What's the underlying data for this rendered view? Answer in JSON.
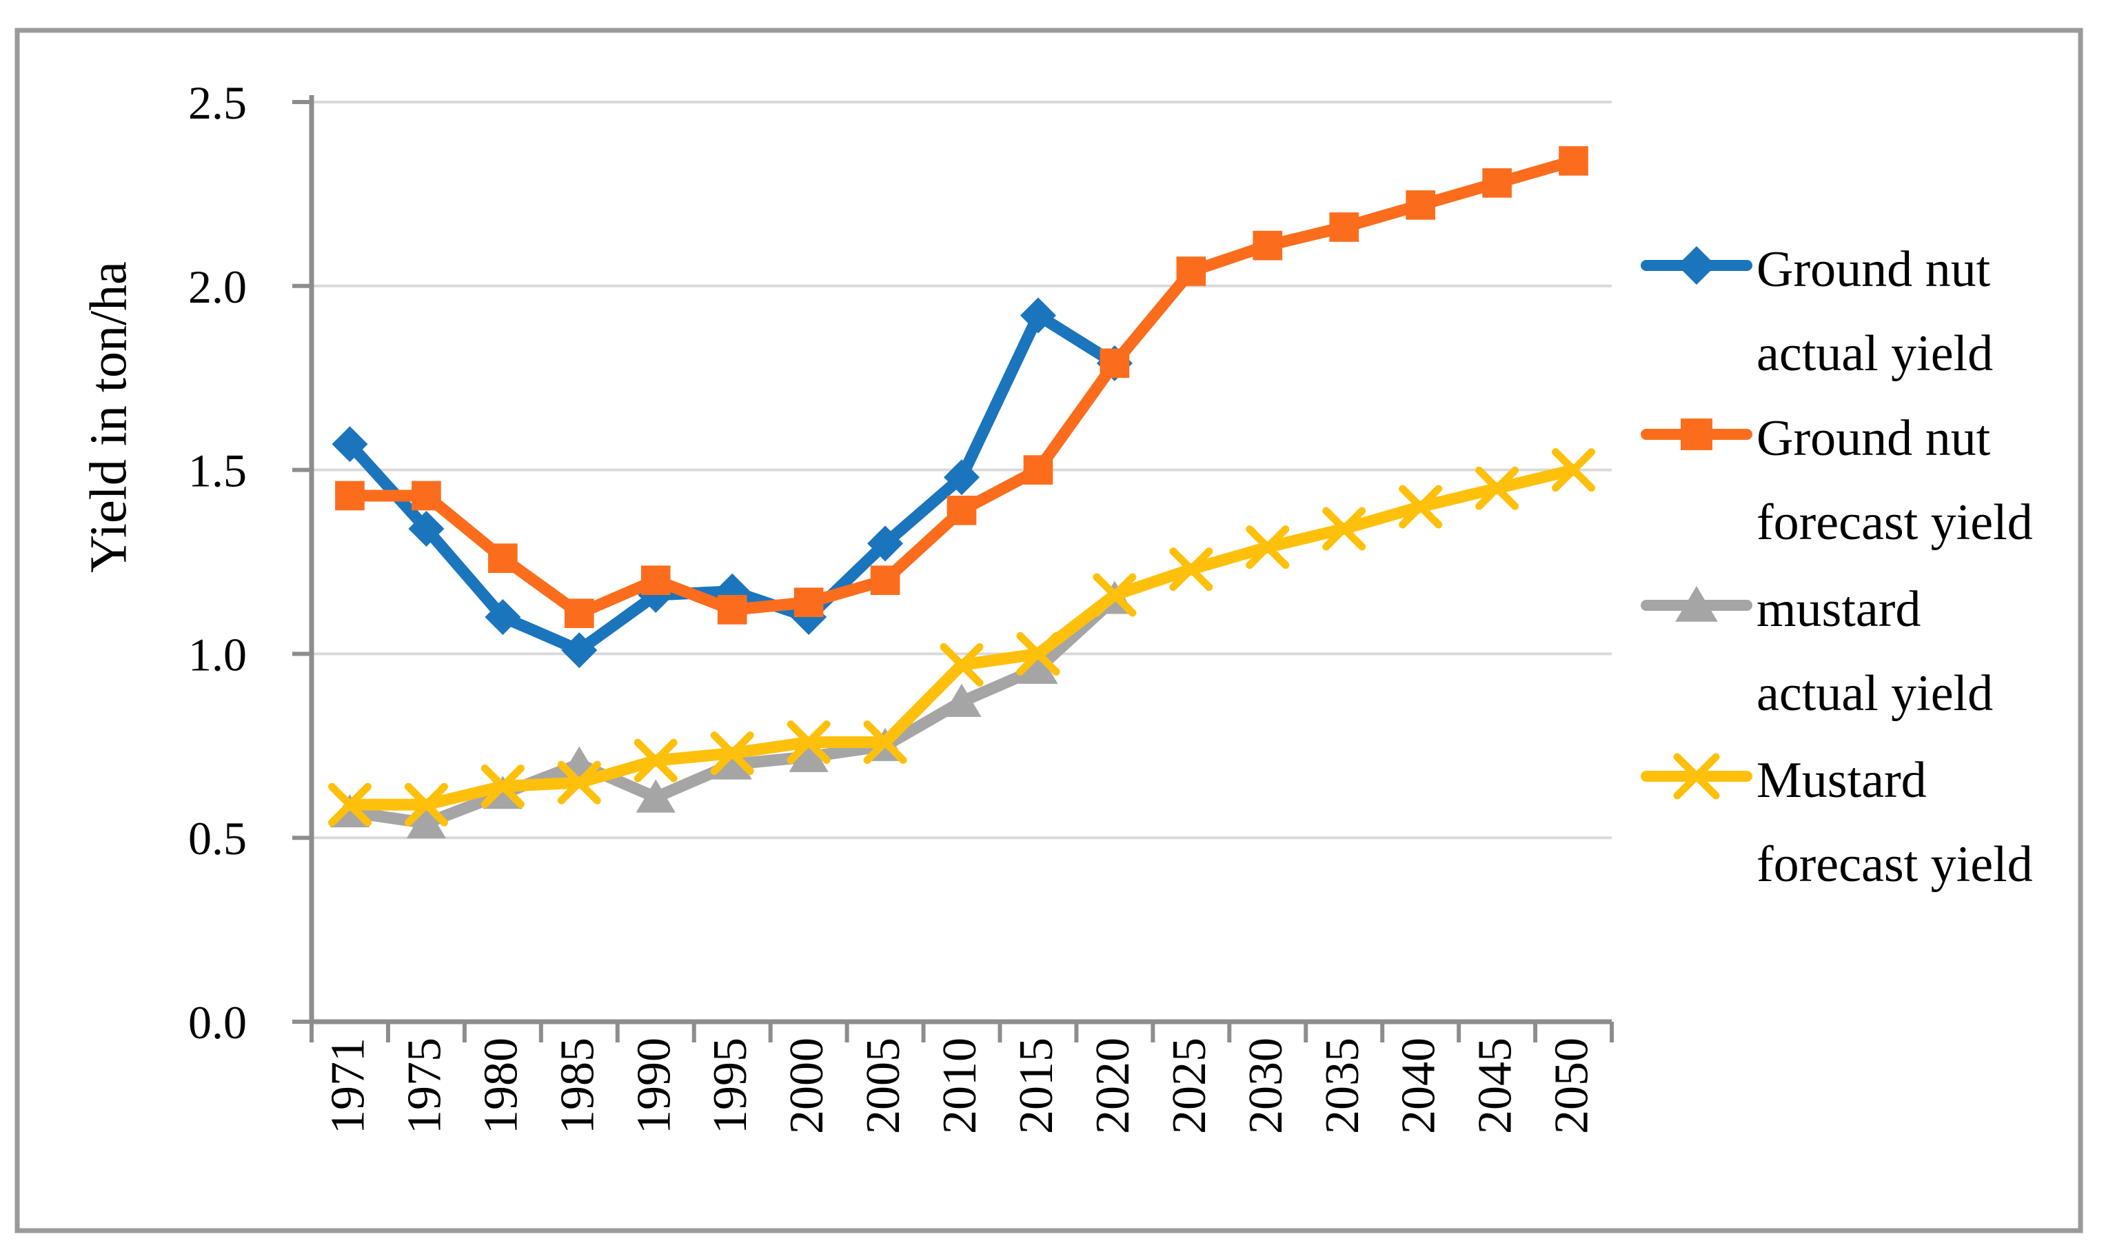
{
  "figure": {
    "frame_color": "#9A9A9A",
    "background": "#ffffff",
    "axis_color": "#8D8D8D",
    "gridline_color": "#D9D9D9",
    "text_color": "#000000"
  },
  "chart_data": {
    "type": "line",
    "title": "",
    "xlabel": "",
    "ylabel": "Yield in ton/ha",
    "ylim": [
      0,
      2.5
    ],
    "ytick_step": 0.5,
    "ytick_labels": [
      "2.5",
      "2.0",
      "1.5",
      "1.0",
      "0.5",
      "0.0"
    ],
    "grid": true,
    "legend_position": "right",
    "categories": [
      "1971",
      "1975",
      "1980",
      "1985",
      "1990",
      "1995",
      "2000",
      "2005",
      "2010",
      "2015",
      "2020",
      "2025",
      "2030",
      "2035",
      "2040",
      "2045",
      "2050"
    ],
    "series": [
      {
        "name": "Ground nut actual yield",
        "legend_lines": [
          "Ground nut",
          "actual yield"
        ],
        "color": "#1B75BC",
        "marker": "diamond",
        "values": [
          1.57,
          1.34,
          1.1,
          1.01,
          1.16,
          1.17,
          1.1,
          1.3,
          1.48,
          1.92,
          1.79,
          null,
          null,
          null,
          null,
          null,
          null
        ]
      },
      {
        "name": "Ground nut forecast yield",
        "legend_lines": [
          "Ground nut",
          "forecast yield"
        ],
        "color": "#FB6D1D",
        "marker": "square",
        "values": [
          1.43,
          1.43,
          1.26,
          1.11,
          1.2,
          1.12,
          1.14,
          1.2,
          1.39,
          1.5,
          1.79,
          2.04,
          2.11,
          2.16,
          2.22,
          2.28,
          2.34
        ]
      },
      {
        "name": "mustard actual yield",
        "legend_lines": [
          "mustard",
          "actual yield"
        ],
        "color": "#A5A5A5",
        "marker": "triangle",
        "values": [
          0.57,
          0.54,
          0.62,
          0.7,
          0.61,
          0.7,
          0.72,
          0.75,
          0.87,
          0.96,
          1.15,
          null,
          null,
          null,
          null,
          null,
          null
        ]
      },
      {
        "name": "Mustard forecast yield",
        "legend_lines": [
          "Mustard",
          "forecast yield"
        ],
        "color": "#FFC00C",
        "marker": "x",
        "values": [
          0.59,
          0.59,
          0.64,
          0.65,
          0.71,
          0.73,
          0.76,
          0.76,
          0.97,
          1.0,
          1.16,
          1.23,
          1.29,
          1.34,
          1.4,
          1.45,
          1.5
        ]
      }
    ]
  }
}
